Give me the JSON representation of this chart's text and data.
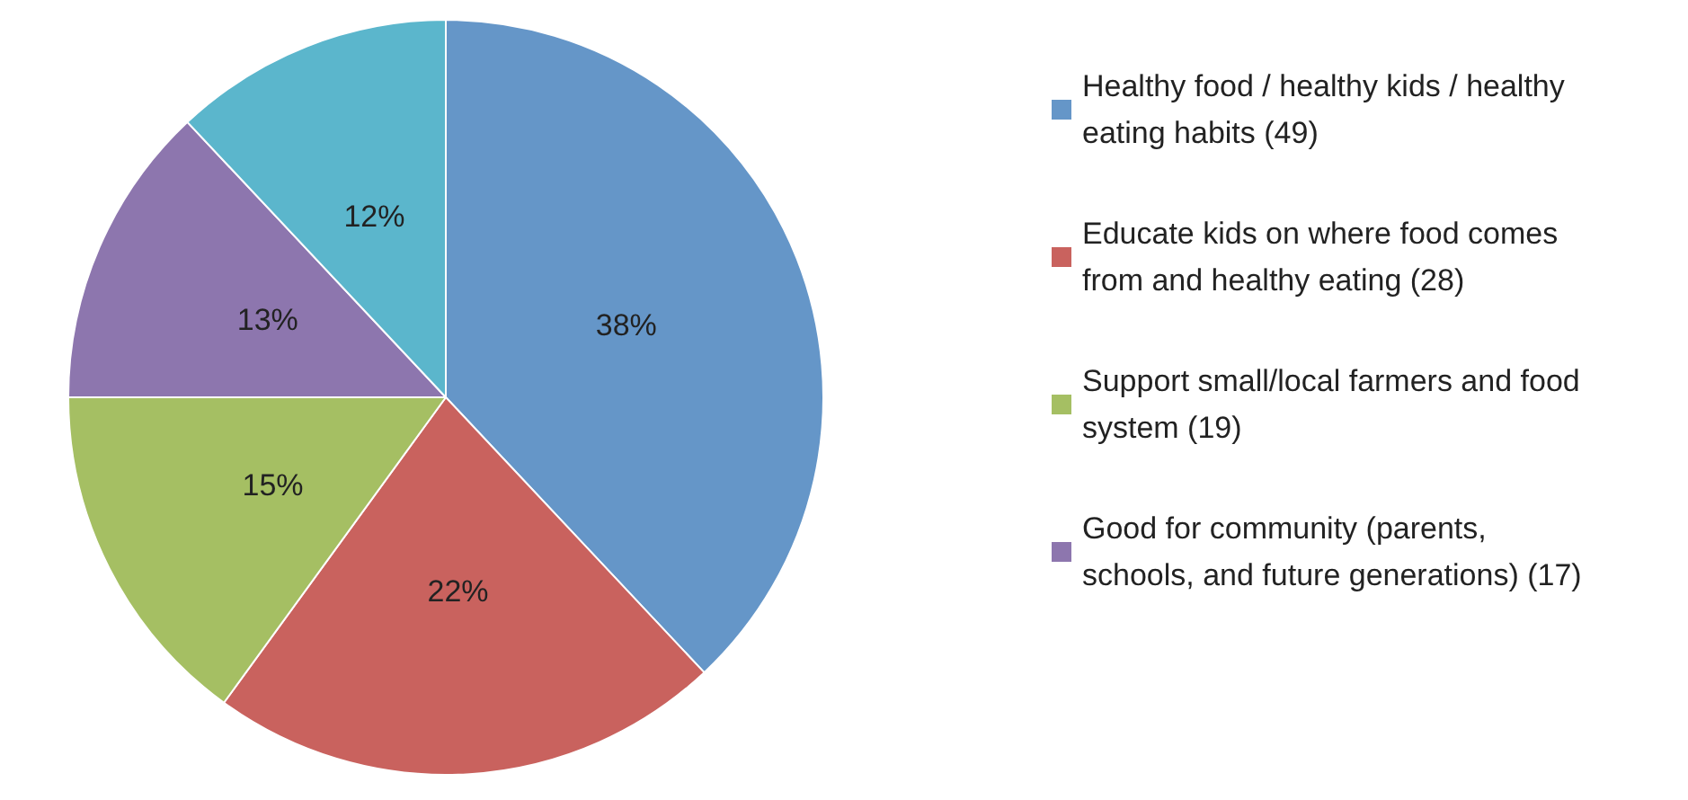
{
  "chart_data": {
    "type": "pie",
    "categories": [
      "Healthy food / healthy kids / healthy eating habits (49)",
      "Educate kids on where food comes from and healthy eating (28)",
      "Support small/local farmers and food system (19)",
      "Good for community (parents, schools, and future generations) (17)",
      null
    ],
    "values": [
      38,
      22,
      15,
      13,
      12
    ],
    "value_labels": [
      "38%",
      "22%",
      "15%",
      "13%",
      "12%"
    ],
    "colors": [
      "#6596c8",
      "#c9625e",
      "#a5bf63",
      "#8d76ae",
      "#5bb6cc"
    ],
    "legend": "right"
  }
}
